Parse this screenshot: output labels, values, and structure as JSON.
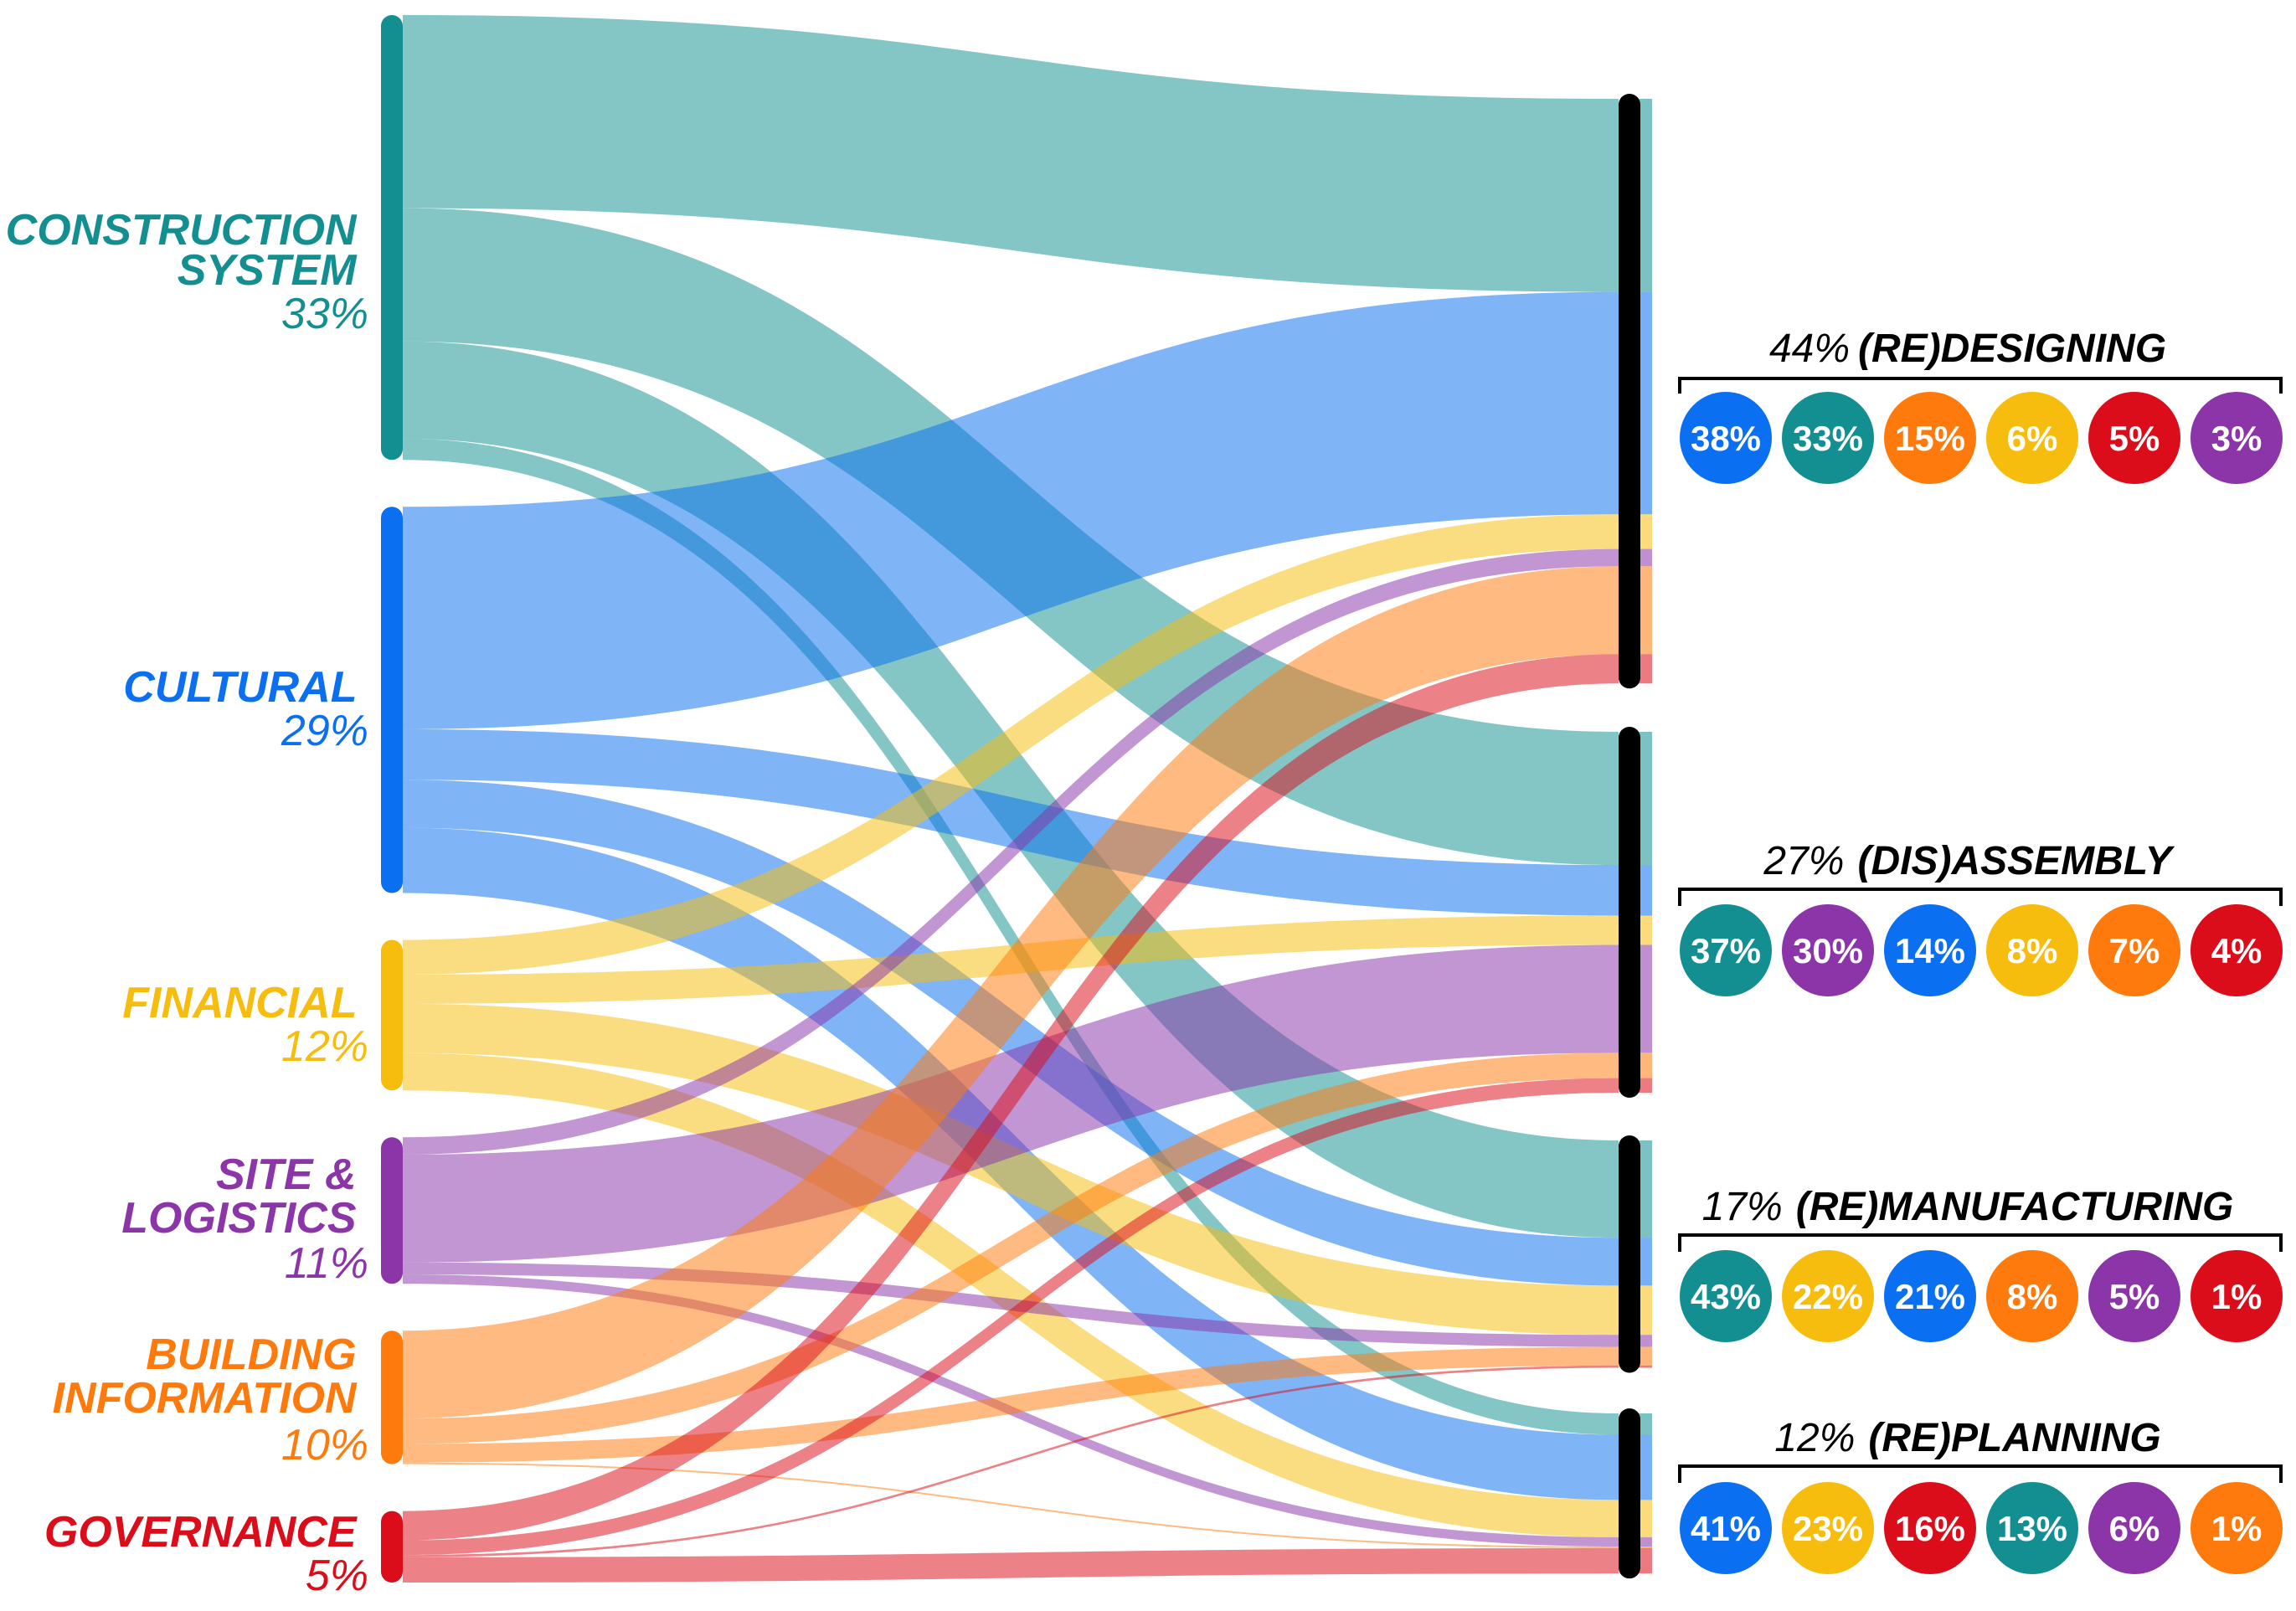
{
  "title": "",
  "sources": [
    {
      "id": "construction",
      "name_lines": [
        "CONSTRUCTION",
        "SYSTEM"
      ],
      "pct": "33%",
      "color": "#138f92"
    },
    {
      "id": "cultural",
      "name_lines": [
        "CULTURAL"
      ],
      "pct": "29%",
      "color": "#0a6ff0"
    },
    {
      "id": "financial",
      "name_lines": [
        "FINANCIAL"
      ],
      "pct": "12%",
      "color": "#f7bd0e"
    },
    {
      "id": "site",
      "name_lines": [
        "SITE &",
        "LOGISTICS"
      ],
      "pct": "11%",
      "color": "#8b35a8"
    },
    {
      "id": "building",
      "name_lines": [
        "BUILDING",
        "INFORMATION"
      ],
      "pct": "10%",
      "color": "#ff7a0d"
    },
    {
      "id": "governance",
      "name_lines": [
        "GOVERNANCE"
      ],
      "pct": "5%",
      "color": "#db0d1a"
    }
  ],
  "targets": [
    {
      "id": "redesigning",
      "pct": "44%",
      "name": "(RE)DESIGNING",
      "breakdown": [
        {
          "source": "cultural",
          "pct": "38%"
        },
        {
          "source": "construction",
          "pct": "33%"
        },
        {
          "source": "building",
          "pct": "15%"
        },
        {
          "source": "financial",
          "pct": "6%"
        },
        {
          "source": "governance",
          "pct": "5%"
        },
        {
          "source": "site",
          "pct": "3%"
        }
      ]
    },
    {
      "id": "disassembly",
      "pct": "27%",
      "name": "(DIS)ASSEMBLY",
      "breakdown": [
        {
          "source": "construction",
          "pct": "37%"
        },
        {
          "source": "site",
          "pct": "30%"
        },
        {
          "source": "cultural",
          "pct": "14%"
        },
        {
          "source": "financial",
          "pct": "8%"
        },
        {
          "source": "building",
          "pct": "7%"
        },
        {
          "source": "governance",
          "pct": "4%"
        }
      ]
    },
    {
      "id": "remanufacturing",
      "pct": "17%",
      "name": "(RE)MANUFACTURING",
      "breakdown": [
        {
          "source": "construction",
          "pct": "43%"
        },
        {
          "source": "financial",
          "pct": "22%"
        },
        {
          "source": "cultural",
          "pct": "21%"
        },
        {
          "source": "building",
          "pct": "8%"
        },
        {
          "source": "site",
          "pct": "5%"
        },
        {
          "source": "governance",
          "pct": "1%"
        }
      ]
    },
    {
      "id": "replanning",
      "pct": "12%",
      "name": "(RE)PLANNING",
      "breakdown": [
        {
          "source": "cultural",
          "pct": "41%"
        },
        {
          "source": "financial",
          "pct": "23%"
        },
        {
          "source": "governance",
          "pct": "16%"
        },
        {
          "source": "construction",
          "pct": "13%"
        },
        {
          "source": "site",
          "pct": "6%"
        },
        {
          "source": "building",
          "pct": "1%"
        }
      ]
    }
  ],
  "chart_data": {
    "type": "sankey",
    "title": "",
    "unit": "%",
    "nodes_left": [
      "CONSTRUCTION SYSTEM",
      "CULTURAL",
      "FINANCIAL",
      "SITE & LOGISTICS",
      "BUILDING INFORMATION",
      "GOVERNANCE"
    ],
    "nodes_right": [
      "(RE)DESIGNING",
      "(DIS)ASSEMBLY",
      "(RE)MANUFACTURING",
      "(RE)PLANNING"
    ],
    "left_values": [
      33,
      29,
      12,
      11,
      10,
      5
    ],
    "right_values": [
      44,
      27,
      17,
      12
    ],
    "links": [
      {
        "from": "construction",
        "to": "redesigning",
        "value": 14.5
      },
      {
        "from": "construction",
        "to": "disassembly",
        "value": 10.0
      },
      {
        "from": "construction",
        "to": "remanufacturing",
        "value": 7.3
      },
      {
        "from": "construction",
        "to": "replanning",
        "value": 1.6
      },
      {
        "from": "cultural",
        "to": "redesigning",
        "value": 16.7
      },
      {
        "from": "cultural",
        "to": "disassembly",
        "value": 3.8
      },
      {
        "from": "cultural",
        "to": "remanufacturing",
        "value": 3.6
      },
      {
        "from": "cultural",
        "to": "replanning",
        "value": 4.9
      },
      {
        "from": "financial",
        "to": "redesigning",
        "value": 2.6
      },
      {
        "from": "financial",
        "to": "disassembly",
        "value": 2.2
      },
      {
        "from": "financial",
        "to": "remanufacturing",
        "value": 3.7
      },
      {
        "from": "financial",
        "to": "replanning",
        "value": 2.8
      },
      {
        "from": "site",
        "to": "redesigning",
        "value": 1.3
      },
      {
        "from": "site",
        "to": "disassembly",
        "value": 8.1
      },
      {
        "from": "site",
        "to": "remanufacturing",
        "value": 0.9
      },
      {
        "from": "site",
        "to": "replanning",
        "value": 0.7
      },
      {
        "from": "building",
        "to": "redesigning",
        "value": 6.6
      },
      {
        "from": "building",
        "to": "disassembly",
        "value": 1.9
      },
      {
        "from": "building",
        "to": "remanufacturing",
        "value": 1.4
      },
      {
        "from": "building",
        "to": "replanning",
        "value": 0.12
      },
      {
        "from": "governance",
        "to": "redesigning",
        "value": 2.2
      },
      {
        "from": "governance",
        "to": "disassembly",
        "value": 1.1
      },
      {
        "from": "governance",
        "to": "remanufacturing",
        "value": 0.17
      },
      {
        "from": "governance",
        "to": "replanning",
        "value": 1.9
      }
    ]
  }
}
